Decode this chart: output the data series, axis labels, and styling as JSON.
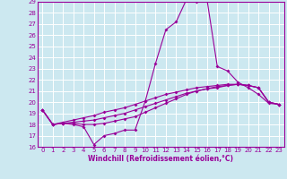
{
  "xlabel": "Windchill (Refroidissement éolien,°C)",
  "bg_color": "#cce8f0",
  "line_color": "#990099",
  "grid_color": "#ffffff",
  "xmin": -0.5,
  "xmax": 23.5,
  "ymin": 16,
  "ymax": 29,
  "xticks": [
    0,
    1,
    2,
    3,
    4,
    5,
    6,
    7,
    8,
    9,
    10,
    11,
    12,
    13,
    14,
    15,
    16,
    17,
    18,
    19,
    20,
    21,
    22,
    23
  ],
  "yticks": [
    16,
    17,
    18,
    19,
    20,
    21,
    22,
    23,
    24,
    25,
    26,
    27,
    28,
    29
  ],
  "lines": [
    [
      19.3,
      18.0,
      18.1,
      18.0,
      17.8,
      16.2,
      17.0,
      17.2,
      17.5,
      17.5,
      20.1,
      23.5,
      26.5,
      27.2,
      29.2,
      29.0,
      29.2,
      23.2,
      22.8,
      21.8,
      21.3,
      20.7,
      19.9,
      19.8
    ],
    [
      19.3,
      18.0,
      18.1,
      18.1,
      18.0,
      18.0,
      18.1,
      18.3,
      18.5,
      18.7,
      19.1,
      19.5,
      19.9,
      20.3,
      20.7,
      21.0,
      21.2,
      21.4,
      21.5,
      21.6,
      21.5,
      21.3,
      20.0,
      19.8
    ],
    [
      19.3,
      18.0,
      18.1,
      18.2,
      18.3,
      18.4,
      18.6,
      18.8,
      19.0,
      19.3,
      19.6,
      19.9,
      20.2,
      20.5,
      20.8,
      21.0,
      21.2,
      21.3,
      21.5,
      21.6,
      21.5,
      21.3,
      20.0,
      19.8
    ],
    [
      19.3,
      18.0,
      18.2,
      18.4,
      18.6,
      18.8,
      19.1,
      19.3,
      19.5,
      19.8,
      20.1,
      20.4,
      20.7,
      20.9,
      21.1,
      21.3,
      21.4,
      21.5,
      21.6,
      21.6,
      21.5,
      21.3,
      20.0,
      19.8
    ]
  ]
}
